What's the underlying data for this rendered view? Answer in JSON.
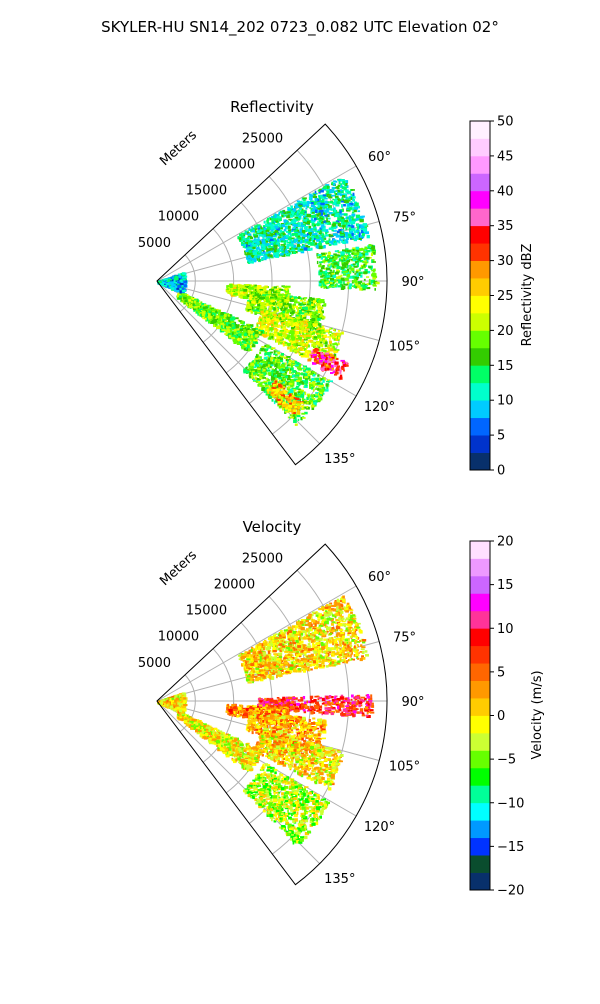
{
  "figure": {
    "title": "SKYLER-HU  SN14_202  0723_0.082 UTC Elevation 02°"
  },
  "colors": {
    "grid": "#b0b0b0",
    "axis": "#000000",
    "reflectivity_colormap": [
      "#08306b",
      "#0033cc",
      "#0066ff",
      "#00ccff",
      "#00ffcc",
      "#00ff66",
      "#33cc00",
      "#66ff00",
      "#ccff00",
      "#ffff00",
      "#ffcc00",
      "#ff9900",
      "#ff3300",
      "#ff0000",
      "#ff66cc",
      "#ff00ff",
      "#cc66ff",
      "#ff99ff",
      "#ffccff",
      "#fff0ff"
    ],
    "velocity_colormap": [
      "#08306b",
      "#0a4d2e",
      "#0033ff",
      "#0099ff",
      "#00ffff",
      "#00ff99",
      "#00ff00",
      "#66ff00",
      "#ccff33",
      "#ffff00",
      "#ffcc00",
      "#ff9900",
      "#ff6600",
      "#ff3300",
      "#ff0000",
      "#ff3399",
      "#ff00ff",
      "#cc66ff",
      "#ee99ff",
      "#ffe0ff"
    ]
  },
  "chart_data": [
    {
      "type": "heatmap",
      "projection": "polar-sector",
      "title": "Reflectivity",
      "radial_label": "Meters",
      "radial_ticks": [
        5000,
        10000,
        15000,
        20000,
        25000
      ],
      "radial_tick_labels": [
        "5000",
        "10000",
        "15000",
        "20000",
        "25000"
      ],
      "r_max": 30000,
      "angle_range_deg": [
        47,
        143
      ],
      "angle_ticks": [
        60,
        75,
        90,
        105,
        120,
        135
      ],
      "angle_tick_labels": [
        "60°",
        "75°",
        "90°",
        "105°",
        "120°",
        "135°"
      ],
      "colorbar": {
        "label": "Reflectivity dBZ",
        "range": [
          0,
          50
        ],
        "ticks": [
          0,
          5,
          10,
          15,
          20,
          25,
          30,
          35,
          40,
          45,
          50
        ],
        "tick_labels": [
          "0",
          "5",
          "10",
          "15",
          "20",
          "25",
          "30",
          "35",
          "40",
          "45",
          "50"
        ]
      },
      "echo_regions": [
        {
          "az": [
            92,
            100
          ],
          "r": [
            9000,
            17000
          ],
          "value": 21
        },
        {
          "az": [
            96,
            108
          ],
          "r": [
            12000,
            22000
          ],
          "value": 19
        },
        {
          "az": [
            105,
            117
          ],
          "r": [
            14000,
            25000
          ],
          "value": 22
        },
        {
          "az": [
            113,
            118
          ],
          "r": [
            22000,
            27000
          ],
          "value": 34
        },
        {
          "az": [
            120,
            136
          ],
          "r": [
            16000,
            26000
          ],
          "value": 17
        },
        {
          "az": [
            130,
            135
          ],
          "r": [
            20000,
            25000
          ],
          "value": 27
        },
        {
          "az": [
            115,
            128
          ],
          "r": [
            3000,
            15000
          ],
          "value": 18
        },
        {
          "az": [
            80,
            92
          ],
          "r": [
            21000,
            28500
          ],
          "value": 16
        },
        {
          "az": [
            60,
            78
          ],
          "r": [
            12000,
            28000
          ],
          "value": 12
        },
        {
          "az": [
            70,
            115
          ],
          "r": [
            0,
            3500
          ],
          "value": 9
        }
      ]
    },
    {
      "type": "heatmap",
      "projection": "polar-sector",
      "title": "Velocity",
      "radial_label": "Meters",
      "radial_ticks": [
        5000,
        10000,
        15000,
        20000,
        25000
      ],
      "radial_tick_labels": [
        "5000",
        "10000",
        "15000",
        "20000",
        "25000"
      ],
      "r_max": 30000,
      "angle_range_deg": [
        47,
        143
      ],
      "angle_ticks": [
        60,
        75,
        90,
        105,
        120,
        135
      ],
      "angle_tick_labels": [
        "60°",
        "75°",
        "90°",
        "105°",
        "120°",
        "135°"
      ],
      "colorbar": {
        "label": "Velocity (m/s)",
        "range": [
          -20,
          20
        ],
        "ticks": [
          -20,
          -15,
          -10,
          -5,
          0,
          5,
          10,
          15,
          20
        ],
        "tick_labels": [
          "−20",
          "−15",
          "−10",
          "−5",
          "0",
          "5",
          "10",
          "15",
          "20"
        ]
      },
      "echo_regions": [
        {
          "az": [
            88,
            94
          ],
          "r": [
            13000,
            28000
          ],
          "value": 8
        },
        {
          "az": [
            92,
            100
          ],
          "r": [
            9000,
            17000
          ],
          "value": 4
        },
        {
          "az": [
            96,
            108
          ],
          "r": [
            12000,
            22000
          ],
          "value": 2
        },
        {
          "az": [
            105,
            117
          ],
          "r": [
            14000,
            25000
          ],
          "value": 0
        },
        {
          "az": [
            120,
            136
          ],
          "r": [
            16000,
            26000
          ],
          "value": -3
        },
        {
          "az": [
            115,
            128
          ],
          "r": [
            3000,
            15000
          ],
          "value": -1
        },
        {
          "az": [
            60,
            78
          ],
          "r": [
            12000,
            28000
          ],
          "value": 0
        },
        {
          "az": [
            70,
            115
          ],
          "r": [
            0,
            3500
          ],
          "value": 0
        }
      ]
    }
  ]
}
